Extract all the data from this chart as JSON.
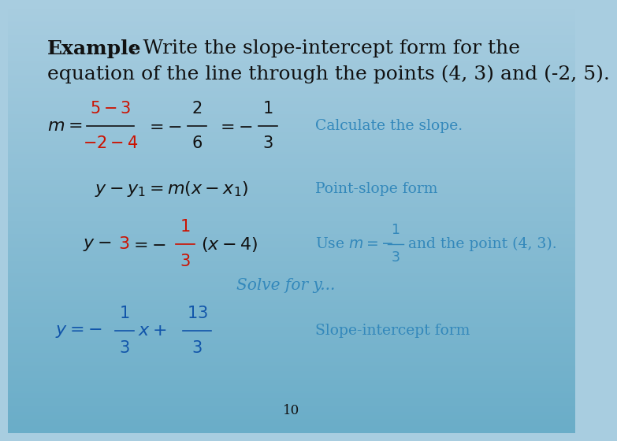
{
  "bg_top": "#a8cde0",
  "bg_bottom": "#6aadc8",
  "title_bold": "Example",
  "title_rest": ": Write the slope-intercept form for the",
  "title_line2": "equation of the line through the points (4, 3) and (-2, 5).",
  "black": "#111111",
  "red": "#cc1100",
  "blue_dark": "#1155aa",
  "blue_label": "#3388bb",
  "blue_math": "#2266bb",
  "page_num": "10",
  "fs_title": 18,
  "fs_math": 16,
  "fs_label": 13.5,
  "fs_page": 12
}
